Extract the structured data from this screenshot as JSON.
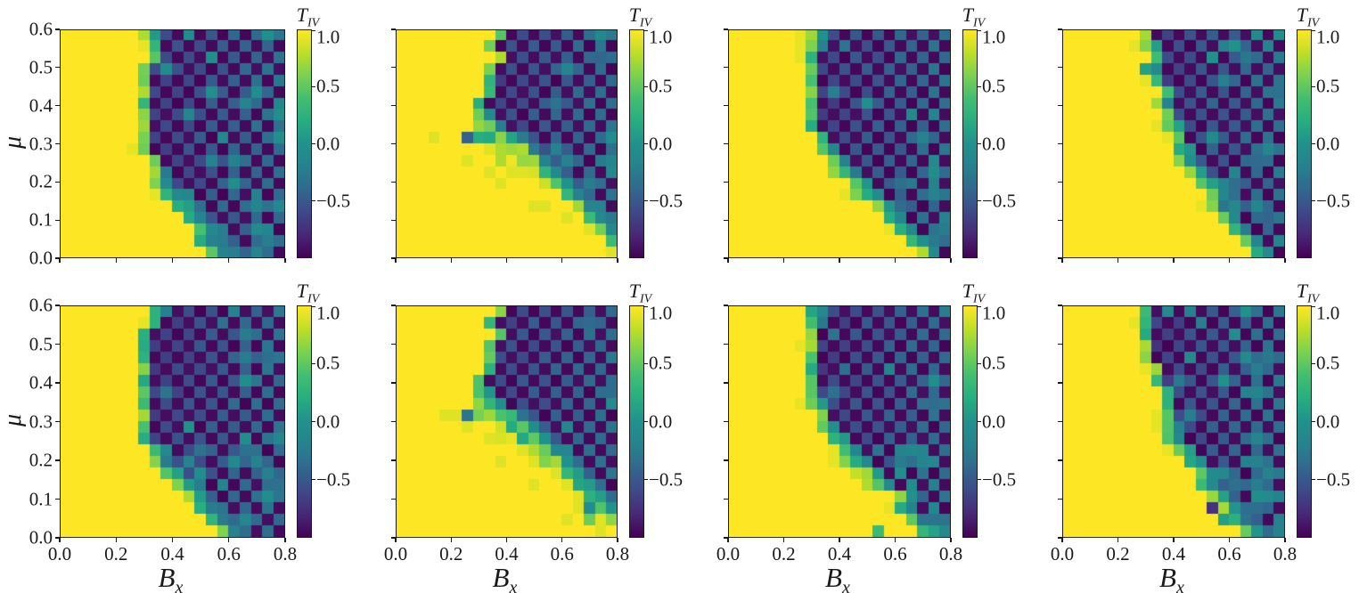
{
  "figure": {
    "background": "#ffffff",
    "text_color": "#1a1a1a"
  },
  "chart_data": {
    "type": "heatmap",
    "layout": "2 rows x 4 columns of phase-diagram heatmaps with individual colorbars, shared x (bottom labels only) and shared y (left labels only)",
    "grid_size": {
      "cols": 20,
      "rows": 20
    },
    "x_axis": {
      "label_main": "B",
      "label_sub": "x",
      "min": 0.0,
      "max": 0.8,
      "tick_labels": [
        "0.0",
        "0.2",
        "0.4",
        "0.6",
        "0.8"
      ]
    },
    "y_axis": {
      "label": "μ",
      "min": 0.0,
      "max": 0.6,
      "tick_labels_top_to_bottom": [
        "0.6",
        "0.5",
        "0.4",
        "0.3",
        "0.2",
        "0.1",
        "0.0"
      ]
    },
    "colorbar": {
      "title_main": "T",
      "title_sub": "IV",
      "vmin": -1.0,
      "vmax": 1.0,
      "tick_labels_top_to_bottom": [
        "1.0",
        "0.5",
        "0.0",
        "−0.5"
      ],
      "tick_fractions_from_top": [
        0.0,
        0.25,
        0.5,
        0.75
      ],
      "colormap": "viridis",
      "viridis_stops": [
        [
          0.0,
          "#440154"
        ],
        [
          0.1,
          "#482878"
        ],
        [
          0.2,
          "#3e4a89"
        ],
        [
          0.3,
          "#31688e"
        ],
        [
          0.4,
          "#26828e"
        ],
        [
          0.5,
          "#21918c"
        ],
        [
          0.6,
          "#27ad81"
        ],
        [
          0.7,
          "#42be71"
        ],
        [
          0.8,
          "#7ad151"
        ],
        [
          0.9,
          "#bdde26"
        ],
        [
          1.0,
          "#fde725"
        ]
      ]
    },
    "value_semantics": {
      "yellow_region_value": 1.0,
      "dark_region_deep_value": -1.0,
      "dark_region_checker_alt_value": -0.6,
      "transition_cells_value_range": [
        -0.3,
        0.9
      ],
      "description": "Left/yellow region T_IV=+1; upper-right dark region checkerboards between ≈-1 and ≈-0.6 (stronger alternation toward large Bx), separated by a green transition boundary."
    },
    "panels": [
      {
        "name": "panel-top-1",
        "row": 0,
        "col": 0,
        "seed": 11,
        "noisy_band": false,
        "boundary_cols": [
          9,
          9,
          9,
          8,
          8,
          8,
          8,
          8,
          8,
          8,
          8,
          9,
          9,
          10,
          11,
          12,
          13,
          14,
          14,
          15
        ],
        "transition_width": [
          2,
          1,
          1,
          1,
          1,
          1,
          1,
          1,
          1,
          1,
          1,
          1,
          1,
          2,
          2,
          2,
          2,
          2,
          2,
          2
        ],
        "extras": []
      },
      {
        "name": "panel-top-2",
        "row": 0,
        "col": 1,
        "seed": 22,
        "noisy_band": true,
        "boundary_cols": [
          10,
          9,
          10,
          9,
          9,
          9,
          8,
          9,
          10,
          12,
          13,
          14,
          15,
          16,
          17,
          18,
          19,
          20,
          20,
          20
        ],
        "transition_width": [
          1,
          1,
          1,
          1,
          1,
          1,
          1,
          2,
          3,
          6,
          4,
          5,
          3,
          3,
          2,
          2,
          2,
          2,
          1,
          0
        ],
        "extras": [
          [
            9,
            6,
            -0.45
          ],
          [
            11,
            10,
            0.95
          ]
        ]
      },
      {
        "name": "panel-top-3",
        "row": 0,
        "col": 2,
        "seed": 33,
        "noisy_band": false,
        "boundary_cols": [
          9,
          9,
          8,
          8,
          8,
          8,
          8,
          8,
          8,
          9,
          10,
          11,
          12,
          13,
          14,
          15,
          16,
          17,
          18,
          19
        ],
        "transition_width": [
          2,
          2,
          1,
          1,
          1,
          1,
          1,
          1,
          1,
          1,
          2,
          2,
          3,
          2,
          3,
          2,
          2,
          2,
          2,
          2
        ],
        "extras": []
      },
      {
        "name": "panel-top-4",
        "row": 0,
        "col": 3,
        "seed": 44,
        "noisy_band": false,
        "boundary_cols": [
          8,
          9,
          9,
          9,
          9,
          10,
          10,
          10,
          11,
          11,
          12,
          12,
          13,
          14,
          14,
          15,
          16,
          17,
          18,
          19
        ],
        "transition_width": [
          1,
          2,
          1,
          2,
          1,
          1,
          2,
          1,
          2,
          1,
          2,
          2,
          2,
          2,
          1,
          2,
          2,
          2,
          2,
          2
        ],
        "extras": []
      },
      {
        "name": "panel-bottom-1",
        "row": 1,
        "col": 0,
        "seed": 55,
        "noisy_band": false,
        "boundary_cols": [
          10,
          9,
          8,
          8,
          8,
          8,
          8,
          8,
          8,
          8,
          8,
          8,
          9,
          10,
          11,
          12,
          13,
          14,
          15,
          16
        ],
        "transition_width": [
          2,
          1,
          1,
          1,
          1,
          1,
          1,
          1,
          1,
          1,
          1,
          1,
          1,
          2,
          2,
          2,
          2,
          2,
          2,
          2
        ],
        "extras": []
      },
      {
        "name": "panel-bottom-2",
        "row": 1,
        "col": 1,
        "seed": 66,
        "noisy_band": true,
        "boundary_cols": [
          10,
          9,
          10,
          9,
          9,
          9,
          8,
          9,
          10,
          12,
          13,
          14,
          15,
          16,
          17,
          18,
          19,
          20,
          20,
          20
        ],
        "transition_width": [
          1,
          1,
          1,
          1,
          1,
          1,
          1,
          2,
          3,
          6,
          4,
          5,
          3,
          3,
          2,
          2,
          2,
          2,
          1,
          0
        ],
        "extras": [
          [
            9,
            6,
            -0.3
          ],
          [
            11,
            10,
            0.93
          ],
          [
            17,
            17,
            -0.05
          ],
          [
            18,
            17,
            0.55
          ]
        ]
      },
      {
        "name": "panel-bottom-3",
        "row": 1,
        "col": 2,
        "seed": 77,
        "noisy_band": false,
        "boundary_cols": [
          9,
          9,
          8,
          8,
          8,
          8,
          8,
          8,
          9,
          9,
          10,
          11,
          12,
          13,
          14,
          15,
          17,
          17,
          18,
          19
        ],
        "transition_width": [
          2,
          2,
          1,
          1,
          1,
          1,
          1,
          1,
          2,
          1,
          2,
          2,
          2,
          3,
          3,
          3,
          2,
          2,
          2,
          2
        ],
        "extras": [
          [
            19,
            13,
            0.35
          ]
        ]
      },
      {
        "name": "panel-bottom-4",
        "row": 1,
        "col": 3,
        "seed": 88,
        "noisy_band": false,
        "boundary_cols": [
          8,
          8,
          8,
          8,
          8,
          9,
          9,
          10,
          10,
          10,
          11,
          11,
          12,
          13,
          13,
          14,
          15,
          16,
          17,
          18
        ],
        "transition_width": [
          1,
          1,
          1,
          1,
          1,
          1,
          1,
          1,
          1,
          1,
          2,
          2,
          2,
          2,
          1,
          2,
          2,
          2,
          2,
          2
        ],
        "extras": [
          [
            17,
            13,
            -0.75
          ],
          [
            18,
            14,
            0.1
          ]
        ]
      }
    ]
  }
}
